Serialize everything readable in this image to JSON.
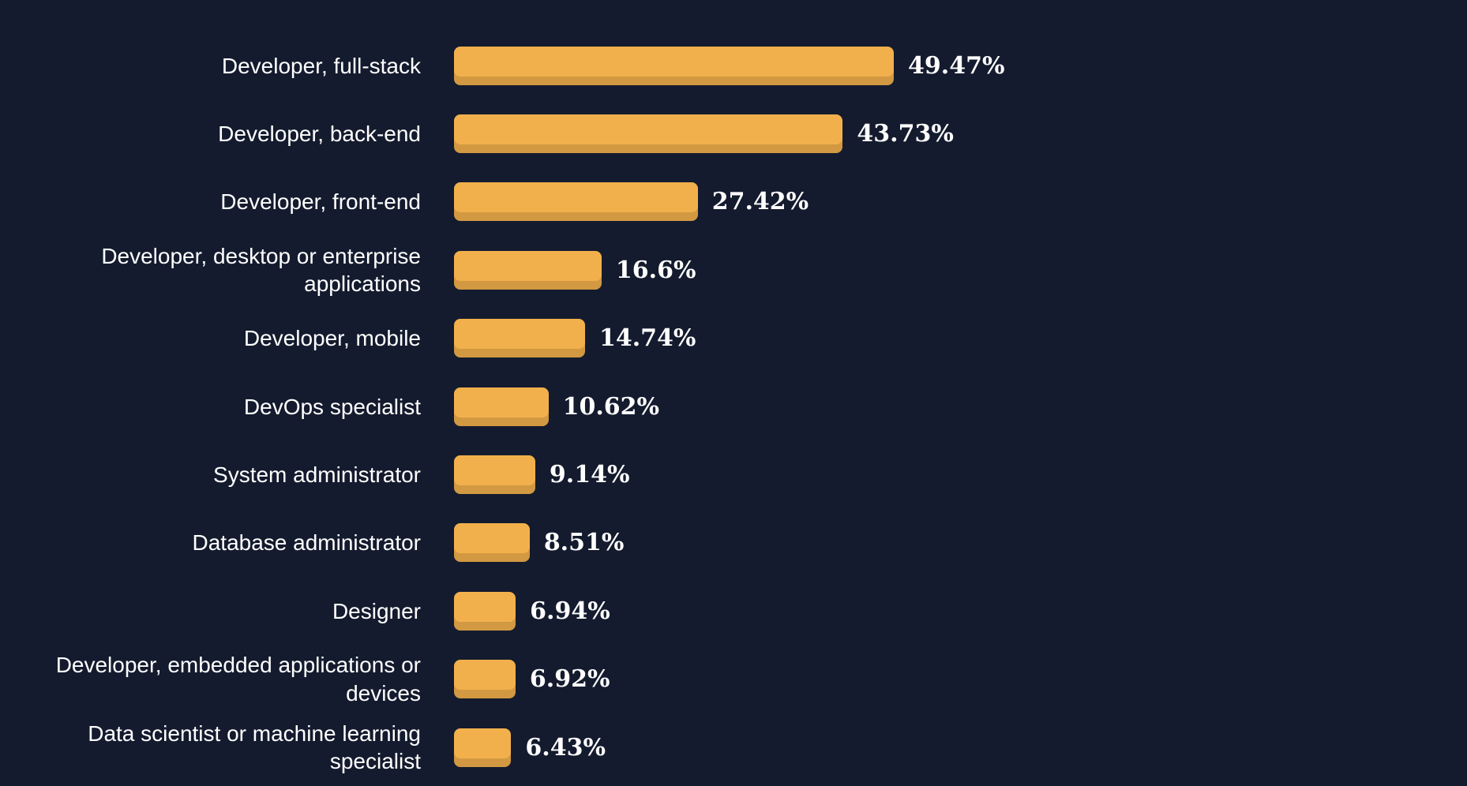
{
  "chart_data": {
    "type": "bar",
    "orientation": "horizontal",
    "categories": [
      "Developer, full-stack",
      "Developer, back-end",
      "Developer, front-end",
      "Developer, desktop or enterprise applications",
      "Developer, mobile",
      "DevOps specialist",
      "System administrator",
      "Database administrator",
      "Designer",
      "Developer, embedded applications or devices",
      "Data scientist or machine learning specialist"
    ],
    "values": [
      49.47,
      43.73,
      27.42,
      16.6,
      14.74,
      10.62,
      9.14,
      8.51,
      6.94,
      6.92,
      6.43
    ],
    "value_labels": [
      "49.47%",
      "43.73%",
      "27.42%",
      "16.6%",
      "14.74%",
      "10.62%",
      "9.14%",
      "8.51%",
      "6.94%",
      "6.92%",
      "6.43%"
    ],
    "xlim": [
      0,
      55
    ],
    "grid": false,
    "legend": "none",
    "colors": {
      "background": "#141b2e",
      "bar": "#f2b04c",
      "bar_bottom_shade": "rgba(0,0,0,0.13)",
      "label_text": "#ffffff",
      "value_text": "#ffffff"
    }
  }
}
